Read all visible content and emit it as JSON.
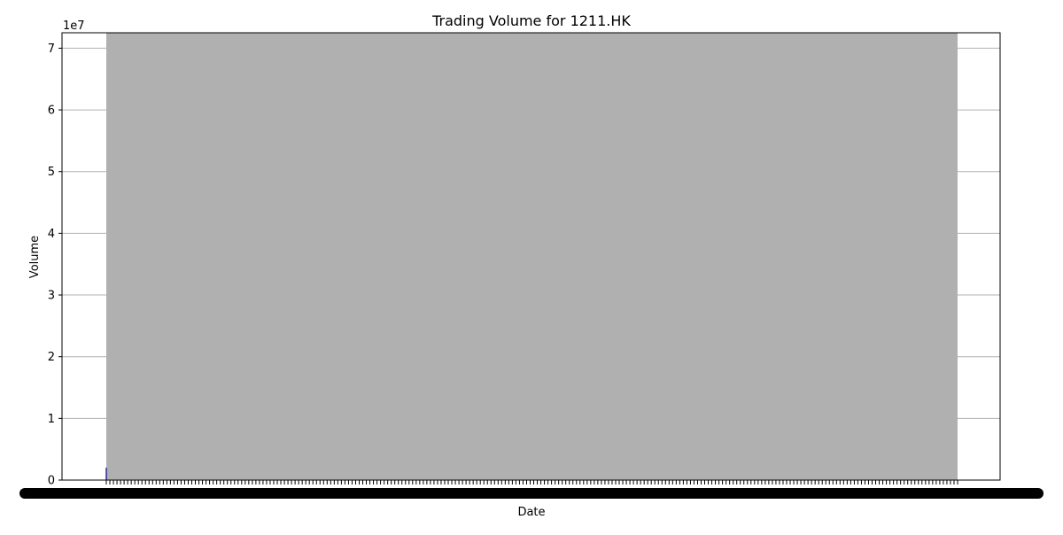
{
  "chart_data": {
    "type": "bar",
    "title": "Trading Volume for 1211.HK",
    "xlabel": "Date",
    "ylabel": "Volume",
    "y_scale_note": "1e7",
    "ylim": [
      0,
      72500000
    ],
    "y_ticks": [
      0,
      10000000,
      20000000,
      30000000,
      40000000,
      50000000,
      60000000,
      70000000
    ],
    "y_tick_labels": [
      "0",
      "1",
      "2",
      "3",
      "4",
      "5",
      "6",
      "7"
    ],
    "grid": true,
    "x_tick_labels_note": "x-axis date tick labels are fully overlapped and unreadable",
    "colors": {
      "bar_fill": "#b0b0b0",
      "bar_edge": "#00008b",
      "grid": "#b0b0b0",
      "axis": "#000000",
      "tick_text_blob": "#000000"
    }
  }
}
